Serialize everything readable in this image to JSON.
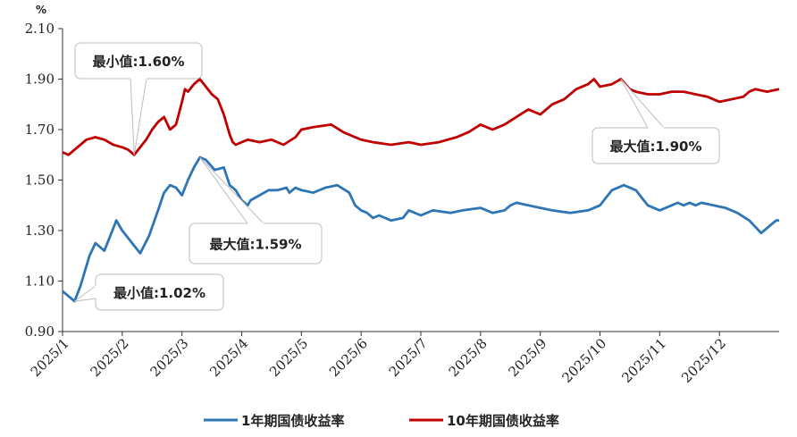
{
  "chart_data": {
    "type": "line",
    "y_unit": "%",
    "ylim": [
      0.9,
      2.1
    ],
    "y_ticks": [
      "0.90",
      "1.10",
      "1.30",
      "1.50",
      "1.70",
      "1.90",
      "2.10"
    ],
    "x_ticks": [
      "2025/1",
      "2025/2",
      "2025/3",
      "2025/4",
      "2025/5",
      "2025/6",
      "2025/7",
      "2025/8",
      "2025/9",
      "2025/10",
      "2025/11",
      "2025/12"
    ],
    "grid": false,
    "legend_position": "bottom",
    "series": [
      {
        "name": "1年期国债收益率",
        "color": "#2E75B6",
        "x": [
          0.0,
          0.1,
          0.2,
          0.3,
          0.35,
          0.45,
          0.55,
          0.7,
          0.8,
          0.9,
          1.0,
          1.1,
          1.2,
          1.3,
          1.45,
          1.6,
          1.7,
          1.8,
          1.9,
          2.0,
          2.1,
          2.2,
          2.3,
          2.4,
          2.55,
          2.7,
          2.8,
          2.9,
          3.0,
          3.1,
          3.15,
          3.3,
          3.45,
          3.6,
          3.75,
          3.8,
          3.85,
          3.9,
          4.0,
          4.2,
          4.4,
          4.6,
          4.8,
          4.9,
          5.0,
          5.1,
          5.2,
          5.3,
          5.5,
          5.7,
          5.8,
          5.9,
          6.0,
          6.2,
          6.5,
          6.7,
          7.0,
          7.2,
          7.4,
          7.5,
          7.6,
          7.8,
          8.0,
          8.2,
          8.5,
          8.8,
          9.0,
          9.2,
          9.4,
          9.6,
          9.8,
          10.0,
          10.2,
          10.3,
          10.4,
          10.5,
          10.6,
          10.7,
          10.9,
          11.1,
          11.3,
          11.5,
          11.7,
          11.9,
          11.95,
          12.0
        ],
        "values": [
          1.06,
          1.04,
          1.02,
          1.08,
          1.12,
          1.2,
          1.25,
          1.22,
          1.28,
          1.34,
          1.3,
          1.27,
          1.24,
          1.21,
          1.28,
          1.38,
          1.45,
          1.48,
          1.47,
          1.44,
          1.5,
          1.55,
          1.59,
          1.58,
          1.54,
          1.55,
          1.48,
          1.46,
          1.42,
          1.4,
          1.42,
          1.44,
          1.46,
          1.46,
          1.47,
          1.45,
          1.46,
          1.47,
          1.46,
          1.45,
          1.47,
          1.48,
          1.45,
          1.4,
          1.38,
          1.37,
          1.35,
          1.36,
          1.34,
          1.35,
          1.38,
          1.37,
          1.36,
          1.38,
          1.37,
          1.38,
          1.39,
          1.37,
          1.38,
          1.4,
          1.41,
          1.4,
          1.39,
          1.38,
          1.37,
          1.38,
          1.4,
          1.46,
          1.48,
          1.46,
          1.4,
          1.38,
          1.4,
          1.41,
          1.4,
          1.41,
          1.4,
          1.41,
          1.4,
          1.39,
          1.37,
          1.34,
          1.29,
          1.33,
          1.34,
          1.34
        ]
      },
      {
        "name": "10年期国债收益率",
        "color": "#C00000",
        "x": [
          0.0,
          0.1,
          0.2,
          0.3,
          0.4,
          0.55,
          0.7,
          0.85,
          1.0,
          1.1,
          1.2,
          1.3,
          1.4,
          1.5,
          1.6,
          1.7,
          1.8,
          1.9,
          2.0,
          2.05,
          2.1,
          2.2,
          2.3,
          2.4,
          2.5,
          2.6,
          2.7,
          2.8,
          2.85,
          2.9,
          3.0,
          3.1,
          3.3,
          3.5,
          3.7,
          3.9,
          4.0,
          4.2,
          4.5,
          4.7,
          4.9,
          5.0,
          5.2,
          5.5,
          5.8,
          6.0,
          6.3,
          6.6,
          6.8,
          7.0,
          7.2,
          7.4,
          7.6,
          7.8,
          8.0,
          8.2,
          8.4,
          8.6,
          8.8,
          8.9,
          9.0,
          9.2,
          9.35,
          9.5,
          9.6,
          9.8,
          10.0,
          10.2,
          10.4,
          10.6,
          10.8,
          11.0,
          11.2,
          11.4,
          11.5,
          11.6,
          11.8,
          12.0
        ],
        "values": [
          1.61,
          1.6,
          1.62,
          1.64,
          1.66,
          1.67,
          1.66,
          1.64,
          1.63,
          1.62,
          1.6,
          1.63,
          1.66,
          1.7,
          1.73,
          1.75,
          1.7,
          1.72,
          1.81,
          1.86,
          1.85,
          1.88,
          1.9,
          1.87,
          1.84,
          1.82,
          1.76,
          1.68,
          1.65,
          1.64,
          1.65,
          1.66,
          1.65,
          1.66,
          1.64,
          1.67,
          1.7,
          1.71,
          1.72,
          1.69,
          1.67,
          1.66,
          1.65,
          1.64,
          1.65,
          1.64,
          1.65,
          1.67,
          1.69,
          1.72,
          1.7,
          1.72,
          1.75,
          1.78,
          1.76,
          1.8,
          1.82,
          1.86,
          1.88,
          1.9,
          1.87,
          1.88,
          1.9,
          1.86,
          1.85,
          1.84,
          1.84,
          1.85,
          1.85,
          1.84,
          1.83,
          1.81,
          1.82,
          1.83,
          1.85,
          1.86,
          1.85,
          1.86
        ]
      }
    ],
    "annotations": [
      {
        "text": "最小值:1.60%",
        "series": 1,
        "x": 1.2,
        "y": 1.6
      },
      {
        "text": "最大值:1.90%",
        "series": 1,
        "x": 9.35,
        "y": 1.9
      },
      {
        "text": "最大值:1.59%",
        "series": 0,
        "x": 2.3,
        "y": 1.59
      },
      {
        "text": "最小值:1.02%",
        "series": 0,
        "x": 0.2,
        "y": 1.02
      }
    ]
  }
}
